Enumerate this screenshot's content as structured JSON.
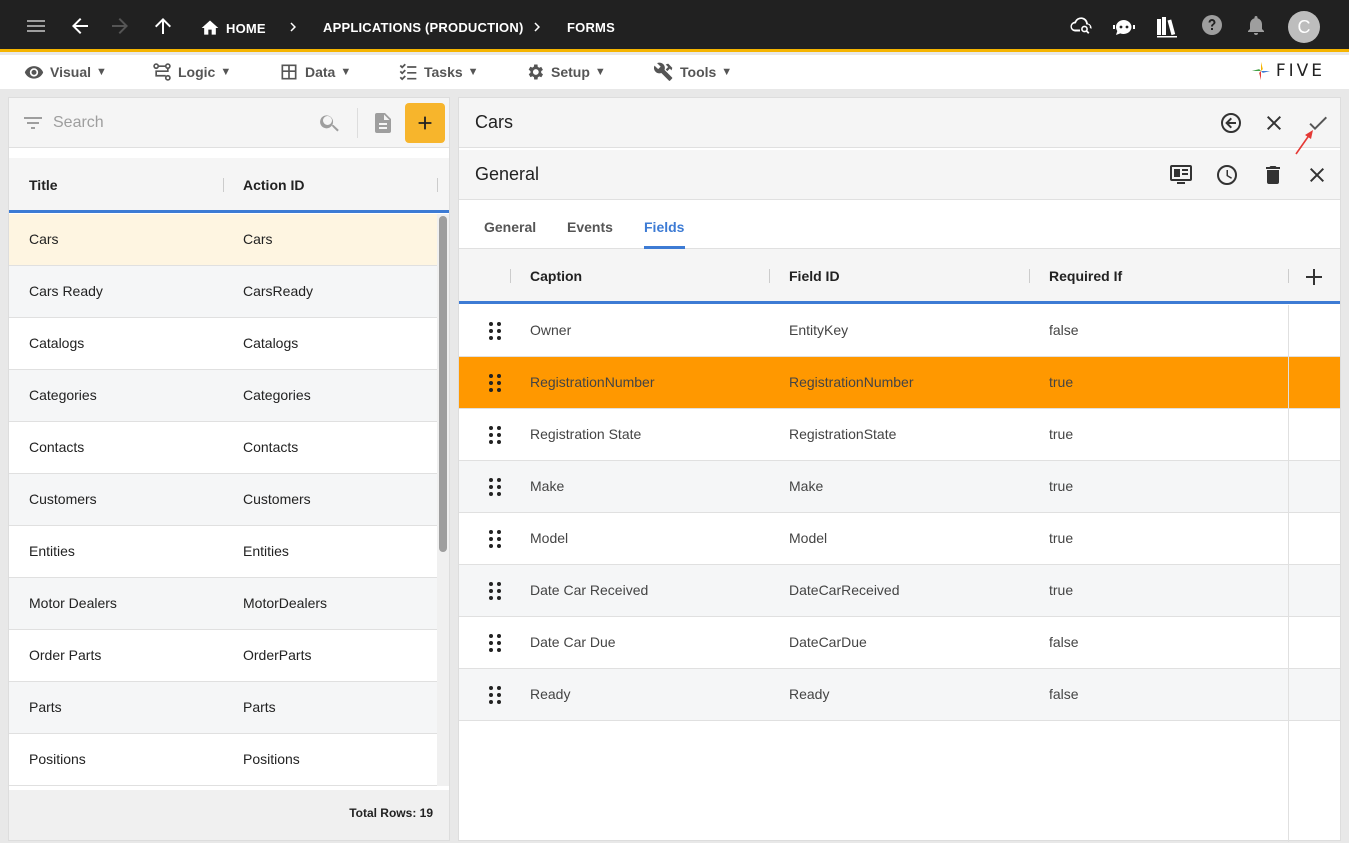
{
  "topbar": {
    "breadcrumbs": [
      "HOME",
      "APPLICATIONS (PRODUCTION)",
      "FORMS"
    ],
    "avatar_letter": "C"
  },
  "menu": {
    "items": [
      {
        "label": "Visual",
        "icon": "eye-icon"
      },
      {
        "label": "Logic",
        "icon": "logic-icon"
      },
      {
        "label": "Data",
        "icon": "table-icon"
      },
      {
        "label": "Tasks",
        "icon": "tasks-icon"
      },
      {
        "label": "Setup",
        "icon": "gear-icon"
      },
      {
        "label": "Tools",
        "icon": "tools-icon"
      }
    ],
    "logo_text": "FIVE"
  },
  "left": {
    "search_placeholder": "Search",
    "columns": [
      "Title",
      "Action ID"
    ],
    "rows": [
      {
        "title": "Cars",
        "action_id": "Cars"
      },
      {
        "title": "Cars Ready",
        "action_id": "CarsReady"
      },
      {
        "title": "Catalogs",
        "action_id": "Catalogs"
      },
      {
        "title": "Categories",
        "action_id": "Categories"
      },
      {
        "title": "Contacts",
        "action_id": "Contacts"
      },
      {
        "title": "Customers",
        "action_id": "Customers"
      },
      {
        "title": "Entities",
        "action_id": "Entities"
      },
      {
        "title": "Motor Dealers",
        "action_id": "MotorDealers"
      },
      {
        "title": "Order Parts",
        "action_id": "OrderParts"
      },
      {
        "title": "Parts",
        "action_id": "Parts"
      },
      {
        "title": "Positions",
        "action_id": "Positions"
      }
    ],
    "total_rows": "Total Rows: 19"
  },
  "right": {
    "title": "Cars",
    "section_title": "General",
    "tabs": [
      "General",
      "Events",
      "Fields"
    ],
    "columns": [
      "Caption",
      "Field ID",
      "Required If"
    ],
    "rows": [
      {
        "caption": "Owner",
        "field_id": "EntityKey",
        "required_if": "false"
      },
      {
        "caption": "RegistrationNumber",
        "field_id": "RegistrationNumber",
        "required_if": "true"
      },
      {
        "caption": "Registration State",
        "field_id": "RegistrationState",
        "required_if": "true"
      },
      {
        "caption": "Make",
        "field_id": "Make",
        "required_if": "true"
      },
      {
        "caption": "Model",
        "field_id": "Model",
        "required_if": "true"
      },
      {
        "caption": "Date Car Received",
        "field_id": "DateCarReceived",
        "required_if": "true"
      },
      {
        "caption": "Date Car Due",
        "field_id": "DateCarDue",
        "required_if": "false"
      },
      {
        "caption": "Ready",
        "field_id": "Ready",
        "required_if": "false"
      }
    ]
  },
  "colors": {
    "accent_blue": "#3d7bd4",
    "selected_orange": "#ff9800",
    "add_button": "#f7b52c",
    "topbar": "#212121"
  }
}
